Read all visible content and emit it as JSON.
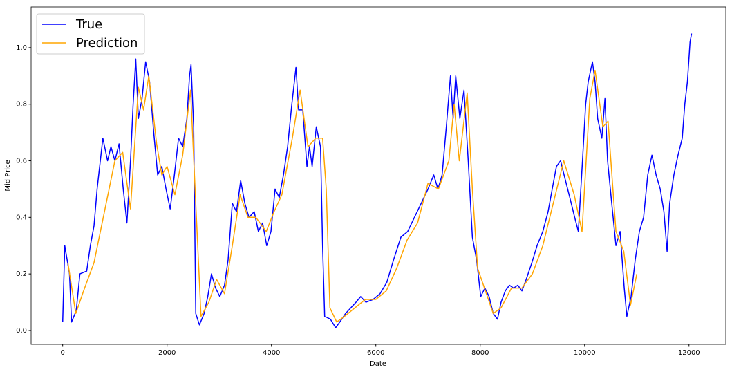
{
  "chart_data": {
    "type": "line",
    "x_label": "Date",
    "y_label": "Mid Price",
    "xlim": [
      -605,
      12705
    ],
    "ylim": [
      -0.049,
      1.144
    ],
    "xticks": [
      0,
      2000,
      4000,
      6000,
      8000,
      10000,
      12000
    ],
    "yticks": [
      {
        "value": 0,
        "label": "0.0"
      },
      0.2,
      0.4,
      0.6,
      0.8,
      {
        "value": 1,
        "label": "1.0"
      }
    ],
    "grid": false,
    "legend": "upper left",
    "series": [
      {
        "name": "True",
        "color": "#0000ff",
        "x": [
          0,
          40,
          130,
          170,
          260,
          330,
          460,
          530,
          600,
          660,
          770,
          860,
          925,
          1000,
          1080,
          1160,
          1230,
          1300,
          1350,
          1400,
          1450,
          1520,
          1590,
          1665,
          1745,
          1820,
          1900,
          1980,
          2060,
          2140,
          2220,
          2300,
          2380,
          2430,
          2460,
          2510,
          2550,
          2620,
          2710,
          2780,
          2850,
          2930,
          3010,
          3100,
          3170,
          3250,
          3330,
          3410,
          3490,
          3570,
          3670,
          3750,
          3830,
          3910,
          3990,
          4070,
          4150,
          4230,
          4310,
          4390,
          4470,
          4520,
          4600,
          4680,
          4730,
          4780,
          4860,
          4940,
          4980,
          5020,
          5130,
          5230,
          5310,
          5420,
          5520,
          5620,
          5710,
          5810,
          5950,
          6080,
          6210,
          6340,
          6480,
          6610,
          6740,
          6870,
          7000,
          7110,
          7190,
          7270,
          7350,
          7430,
          7480,
          7530,
          7610,
          7690,
          7770,
          7850,
          7930,
          8010,
          8090,
          8170,
          8250,
          8330,
          8400,
          8480,
          8560,
          8640,
          8720,
          8800,
          8880,
          8990,
          9090,
          9200,
          9300,
          9380,
          9460,
          9540,
          9620,
          9730,
          9810,
          9880,
          9960,
          10020,
          10070,
          10150,
          10200,
          10250,
          10330,
          10390,
          10440,
          10520,
          10600,
          10680,
          10760,
          10810,
          10890,
          10970,
          11050,
          11130,
          11210,
          11290,
          11370,
          11450,
          11520,
          11580,
          11630,
          11710,
          11790,
          11870,
          11920,
          11970,
          12020,
          12050
        ],
        "values": [
          0.03,
          0.3,
          0.2,
          0.03,
          0.07,
          0.2,
          0.21,
          0.3,
          0.37,
          0.5,
          0.68,
          0.6,
          0.65,
          0.6,
          0.66,
          0.5,
          0.38,
          0.6,
          0.8,
          0.96,
          0.75,
          0.82,
          0.95,
          0.88,
          0.7,
          0.55,
          0.58,
          0.5,
          0.43,
          0.55,
          0.68,
          0.65,
          0.75,
          0.9,
          0.94,
          0.72,
          0.06,
          0.02,
          0.06,
          0.12,
          0.2,
          0.15,
          0.12,
          0.16,
          0.25,
          0.45,
          0.42,
          0.53,
          0.45,
          0.4,
          0.42,
          0.35,
          0.38,
          0.3,
          0.35,
          0.5,
          0.47,
          0.55,
          0.65,
          0.8,
          0.93,
          0.78,
          0.78,
          0.58,
          0.65,
          0.58,
          0.72,
          0.65,
          0.3,
          0.05,
          0.04,
          0.01,
          0.03,
          0.06,
          0.08,
          0.1,
          0.12,
          0.1,
          0.11,
          0.13,
          0.17,
          0.25,
          0.33,
          0.35,
          0.4,
          0.45,
          0.5,
          0.55,
          0.5,
          0.55,
          0.72,
          0.9,
          0.75,
          0.9,
          0.75,
          0.85,
          0.6,
          0.33,
          0.25,
          0.12,
          0.15,
          0.12,
          0.06,
          0.04,
          0.1,
          0.14,
          0.16,
          0.15,
          0.16,
          0.14,
          0.18,
          0.24,
          0.3,
          0.35,
          0.42,
          0.5,
          0.58,
          0.6,
          0.54,
          0.46,
          0.4,
          0.35,
          0.6,
          0.8,
          0.88,
          0.95,
          0.88,
          0.75,
          0.68,
          0.82,
          0.6,
          0.45,
          0.3,
          0.35,
          0.15,
          0.05,
          0.12,
          0.25,
          0.35,
          0.4,
          0.55,
          0.62,
          0.55,
          0.5,
          0.42,
          0.28,
          0.45,
          0.55,
          0.62,
          0.68,
          0.8,
          0.88,
          1.02,
          1.05
        ]
      },
      {
        "name": "Prediction",
        "color": "#ffa500",
        "x": [
          100,
          250,
          400,
          600,
          800,
          1000,
          1150,
          1300,
          1450,
          1550,
          1650,
          1800,
          1900,
          2000,
          2150,
          2300,
          2450,
          2550,
          2650,
          2800,
          2950,
          3100,
          3250,
          3400,
          3550,
          3700,
          3900,
          4050,
          4200,
          4400,
          4550,
          4700,
          4850,
          4980,
          5050,
          5120,
          5250,
          5400,
          5600,
          5800,
          6000,
          6200,
          6400,
          6600,
          6800,
          7000,
          7200,
          7400,
          7500,
          7600,
          7750,
          7850,
          7950,
          8100,
          8250,
          8400,
          8600,
          8800,
          9000,
          9200,
          9400,
          9600,
          9800,
          9950,
          10100,
          10200,
          10350,
          10450,
          10600,
          10750,
          10880,
          11000
        ],
        "values": [
          0.24,
          0.06,
          0.14,
          0.24,
          0.42,
          0.6,
          0.63,
          0.43,
          0.86,
          0.78,
          0.9,
          0.66,
          0.55,
          0.58,
          0.48,
          0.62,
          0.85,
          0.45,
          0.05,
          0.1,
          0.18,
          0.13,
          0.3,
          0.48,
          0.4,
          0.4,
          0.35,
          0.42,
          0.48,
          0.68,
          0.85,
          0.65,
          0.68,
          0.68,
          0.5,
          0.08,
          0.03,
          0.05,
          0.08,
          0.11,
          0.11,
          0.14,
          0.22,
          0.32,
          0.38,
          0.52,
          0.5,
          0.6,
          0.8,
          0.6,
          0.84,
          0.5,
          0.22,
          0.14,
          0.06,
          0.08,
          0.15,
          0.15,
          0.2,
          0.3,
          0.45,
          0.6,
          0.48,
          0.35,
          0.82,
          0.92,
          0.72,
          0.74,
          0.35,
          0.28,
          0.09,
          0.2
        ]
      }
    ]
  }
}
